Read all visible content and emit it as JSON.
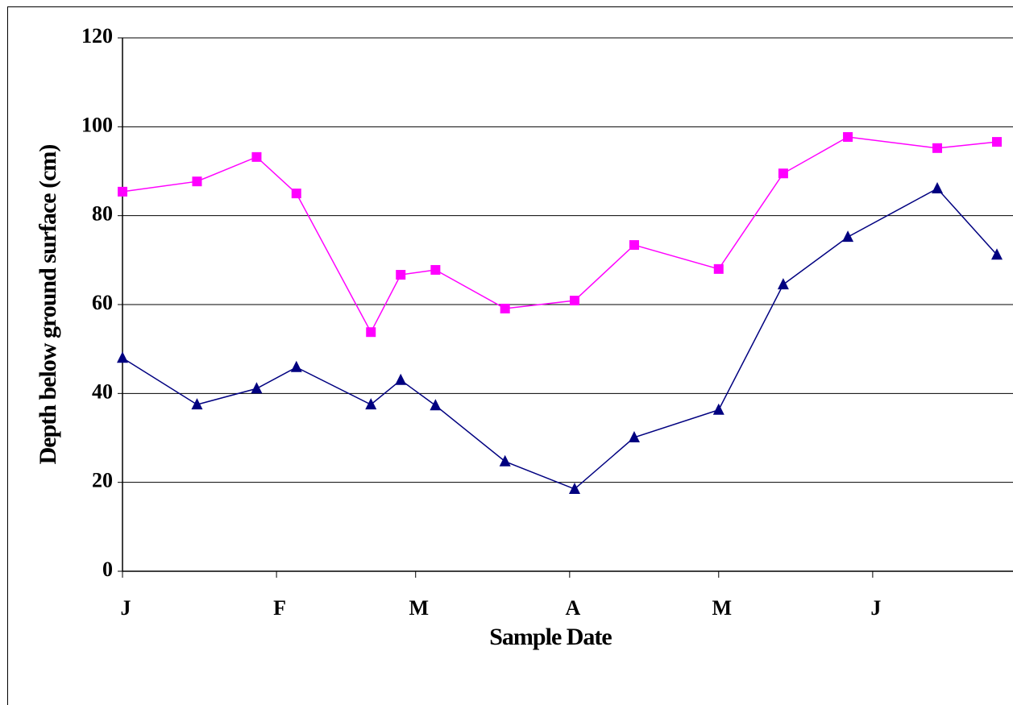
{
  "chart_data": {
    "type": "line",
    "x_label": "Sample Date",
    "y_label": "Depth below ground surface (cm)",
    "x": [
      0,
      15,
      27,
      35,
      50,
      56,
      63,
      77,
      91,
      103,
      120,
      133,
      146,
      164,
      176
    ],
    "series": [
      {
        "color": "#ff00ff",
        "marker": "square",
        "values": [
          85.4,
          87.7,
          93.2,
          85,
          53.8,
          66.7,
          67.8,
          59.1,
          60.9,
          73.4,
          68,
          89.5,
          97.7,
          95.2,
          96.6
        ]
      },
      {
        "color": "#000080",
        "marker": "triangle",
        "values": [
          48,
          37.5,
          41.1,
          45.9,
          37.5,
          43,
          37.3,
          24.7,
          18.5,
          30.1,
          36.3,
          64.5,
          75.2,
          86.1,
          71.2
        ]
      }
    ],
    "xlim": [
      0,
      176
    ],
    "xticks": [
      {
        "value": 0,
        "label": "J"
      },
      {
        "value": 31,
        "label": "F"
      },
      {
        "value": 59,
        "label": "M"
      },
      {
        "value": 90,
        "label": "A"
      },
      {
        "value": 120,
        "label": "M"
      },
      {
        "value": 151,
        "label": "J"
      }
    ],
    "ylim": [
      0,
      120
    ],
    "yticks": [
      0,
      20,
      40,
      60,
      80,
      100,
      120
    ],
    "grid": true
  }
}
